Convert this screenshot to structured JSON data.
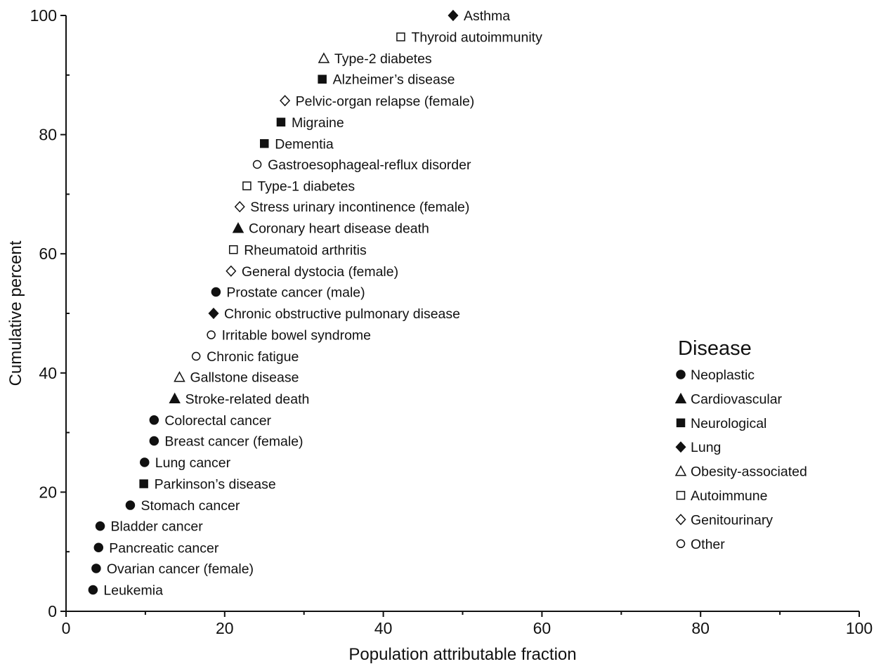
{
  "chart_data": {
    "type": "scatter",
    "title": "",
    "xlabel": "Population attributable fraction",
    "ylabel": "Cumulative percent",
    "xlim": [
      0,
      100
    ],
    "ylim": [
      0,
      100
    ],
    "x_ticks": [
      0,
      20,
      40,
      60,
      80,
      100
    ],
    "x_minor_ticks": [
      10,
      30,
      50,
      70,
      90
    ],
    "y_ticks": [
      0,
      20,
      40,
      60,
      80,
      100
    ],
    "y_minor_ticks": [
      10,
      30,
      50,
      70,
      90
    ],
    "grid": false,
    "legend": {
      "title": "Disease",
      "position": "right",
      "entries": [
        {
          "key": "neoplastic",
          "label": "Neoplastic",
          "marker": "circle",
          "filled": true
        },
        {
          "key": "cardiovascular",
          "label": "Cardiovascular",
          "marker": "triangle",
          "filled": true
        },
        {
          "key": "neurological",
          "label": "Neurological",
          "marker": "square",
          "filled": true
        },
        {
          "key": "lung",
          "label": "Lung",
          "marker": "diamond",
          "filled": true
        },
        {
          "key": "obesity",
          "label": "Obesity-associated",
          "marker": "triangle",
          "filled": false
        },
        {
          "key": "autoimmune",
          "label": "Autoimmune",
          "marker": "square",
          "filled": false
        },
        {
          "key": "genitourinary",
          "label": "Genitourinary",
          "marker": "diamond",
          "filled": false
        },
        {
          "key": "other",
          "label": "Other",
          "marker": "circle",
          "filled": false
        }
      ]
    },
    "points": [
      {
        "label": "Leukemia",
        "category": "neoplastic",
        "x": 3.4,
        "y": 3.6
      },
      {
        "label": "Ovarian cancer (female)",
        "category": "neoplastic",
        "x": 3.8,
        "y": 7.2
      },
      {
        "label": "Pancreatic cancer",
        "category": "neoplastic",
        "x": 4.1,
        "y": 10.7
      },
      {
        "label": "Bladder cancer",
        "category": "neoplastic",
        "x": 4.3,
        "y": 14.3
      },
      {
        "label": "Stomach cancer",
        "category": "neoplastic",
        "x": 8.1,
        "y": 17.8
      },
      {
        "label": "Parkinson’s disease",
        "category": "neurological",
        "x": 9.8,
        "y": 21.4
      },
      {
        "label": "Lung cancer",
        "category": "neoplastic",
        "x": 9.9,
        "y": 25.0
      },
      {
        "label": "Breast cancer (female)",
        "category": "neoplastic",
        "x": 11.1,
        "y": 28.6
      },
      {
        "label": "Colorectal cancer",
        "category": "neoplastic",
        "x": 11.1,
        "y": 32.1
      },
      {
        "label": "Stroke-related death",
        "category": "cardiovascular",
        "x": 13.7,
        "y": 35.7
      },
      {
        "label": "Gallstone disease",
        "category": "obesity",
        "x": 14.3,
        "y": 39.3
      },
      {
        "label": "Chronic  fatigue",
        "category": "other",
        "x": 16.4,
        "y": 42.8
      },
      {
        "label": "Irritable bowel syndrome",
        "category": "other",
        "x": 18.3,
        "y": 46.4
      },
      {
        "label": "Chronic obstructive pulmonary disease",
        "category": "lung",
        "x": 18.6,
        "y": 50.0
      },
      {
        "label": "Prostate cancer (male)",
        "category": "neoplastic",
        "x": 18.9,
        "y": 53.6
      },
      {
        "label": "General dystocia (female)",
        "category": "genitourinary",
        "x": 20.8,
        "y": 57.1
      },
      {
        "label": "Rheumatoid  arthritis",
        "category": "autoimmune",
        "x": 21.1,
        "y": 60.7
      },
      {
        "label": "Coronary heart disease death",
        "category": "cardiovascular",
        "x": 21.7,
        "y": 64.3
      },
      {
        "label": "Stress urinary incontinence (female)",
        "category": "genitourinary",
        "x": 21.9,
        "y": 67.9
      },
      {
        "label": "Type-1 diabetes",
        "category": "autoimmune",
        "x": 22.8,
        "y": 71.4
      },
      {
        "label": "Gastroesophageal-reflux disorder",
        "category": "other",
        "x": 24.1,
        "y": 75.0
      },
      {
        "label": "Dementia",
        "category": "neurological",
        "x": 25.0,
        "y": 78.5
      },
      {
        "label": "Migraine",
        "category": "neurological",
        "x": 27.1,
        "y": 82.1
      },
      {
        "label": "Pelvic-organ relapse (female)",
        "category": "genitourinary",
        "x": 27.6,
        "y": 85.7
      },
      {
        "label": "Alzheimer’s disease",
        "category": "neurological",
        "x": 32.3,
        "y": 89.3
      },
      {
        "label": "Type-2 diabetes",
        "category": "obesity",
        "x": 32.5,
        "y": 92.8
      },
      {
        "label": "Thyroid autoimmunity",
        "category": "autoimmune",
        "x": 42.2,
        "y": 96.4
      },
      {
        "label": "Asthma",
        "category": "lung",
        "x": 48.8,
        "y": 100.0
      }
    ]
  }
}
